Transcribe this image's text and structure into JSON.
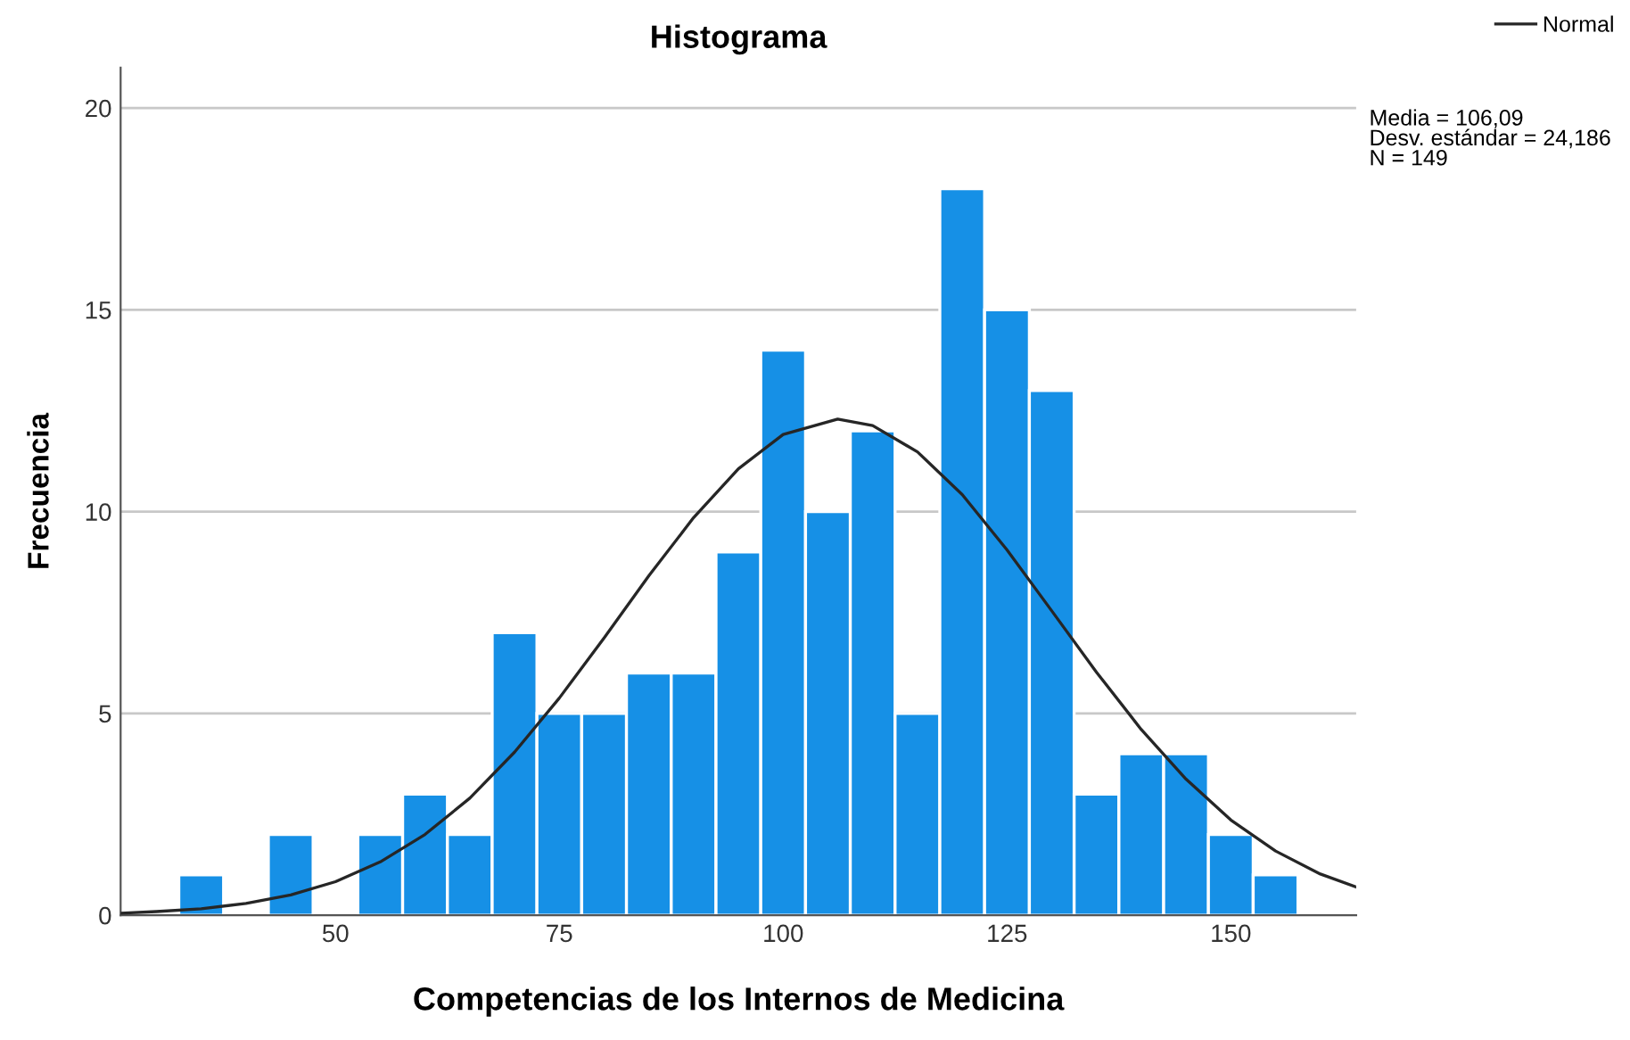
{
  "chart_data": {
    "type": "histogram",
    "title": "Histograma",
    "xlabel": "Competencias de los Internos de Medicina",
    "ylabel": "Frecuencia",
    "bins": [
      32.5,
      37.5,
      42.5,
      47.5,
      52.5,
      57.5,
      62.5,
      67.5,
      72.5,
      77.5,
      82.5,
      87.5,
      92.5,
      97.5,
      102.5,
      107.5,
      112.5,
      117.5,
      122.5,
      127.5,
      132.5,
      137.5,
      142.5,
      147.5,
      152.5,
      157.5
    ],
    "values": [
      1,
      0,
      2,
      0,
      2,
      3,
      2,
      7,
      5,
      5,
      6,
      6,
      9,
      14,
      10,
      12,
      5,
      18,
      15,
      13,
      3,
      4,
      4,
      2,
      1
    ],
    "color": "#1690e6",
    "series": [
      {
        "type": "line",
        "name": "Normal",
        "color": "#262626",
        "x": [
          26,
          30,
          35,
          40,
          45,
          50,
          55,
          60,
          65,
          70,
          75,
          80,
          85,
          90,
          95,
          100,
          106.09,
          110,
          115,
          120,
          125,
          130,
          135,
          140,
          145,
          150,
          155,
          160,
          164
        ],
        "values": [
          0.05,
          0.09,
          0.16,
          0.29,
          0.5,
          0.83,
          1.32,
          2.0,
          2.9,
          4.04,
          5.38,
          6.87,
          8.41,
          9.85,
          11.06,
          11.91,
          12.29,
          12.13,
          11.48,
          10.42,
          9.05,
          7.54,
          6.02,
          4.6,
          3.37,
          2.36,
          1.59,
          1.02,
          0.7
        ]
      }
    ],
    "annotations": [
      "Media = 106,09\nDesv. estándar = 24,186\nN = 149"
    ],
    "xlim": [
      26,
      164
    ],
    "ylim": [
      0,
      21
    ],
    "xticks": [
      50,
      75,
      100,
      125,
      150
    ],
    "yticks": [
      0,
      5,
      10,
      15,
      20
    ],
    "grid": "y",
    "legend": "top right"
  }
}
